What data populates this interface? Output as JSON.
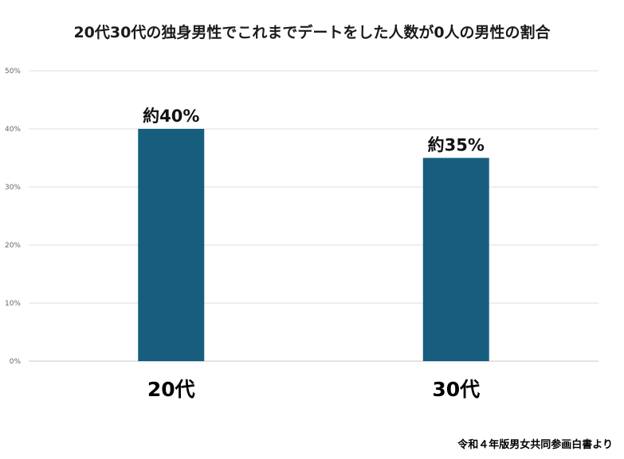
{
  "chart_data": {
    "type": "bar",
    "title": "20代30代の独身男性でこれまでデートをした人数が0人の男性の割合",
    "categories": [
      "20代",
      "30代"
    ],
    "values": [
      40,
      35
    ],
    "data_labels": [
      "約40%",
      "約35%"
    ],
    "ylim": [
      0,
      50
    ],
    "yticks": [
      0,
      10,
      20,
      30,
      40,
      50
    ],
    "ytick_labels": [
      "0%",
      "10%",
      "20%",
      "30%",
      "40%",
      "50%"
    ],
    "xlabel": "",
    "ylabel": "",
    "grid": true,
    "bar_color": "#175e7e"
  },
  "source_note": "令和４年版男女共同参画白書より"
}
